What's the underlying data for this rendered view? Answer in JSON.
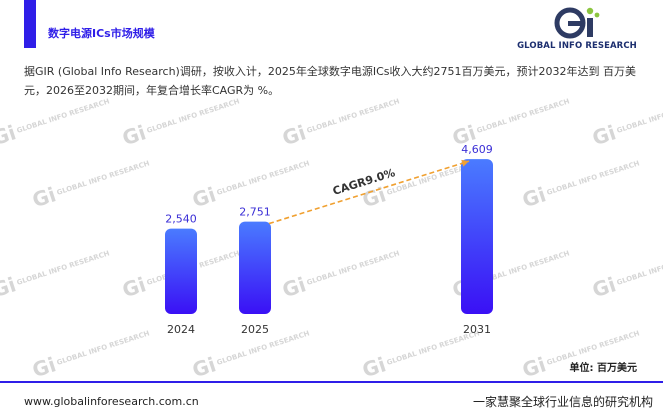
{
  "header": {
    "title": "数字电源ICs市场规模",
    "logo_text": "GLOBAL INFO RESEARCH"
  },
  "description": "据GIR (Global Info Research)调研，按收入计，2025年全球数字电源ICs收入大约2751百万美元，预计2032年达到 百万美元，2026至2032期间，年复合增长率CAGR为 %。",
  "watermark": {
    "mark": "Gi",
    "text": "GLOBAL INFO RESEARCH"
  },
  "chart_data": {
    "type": "bar",
    "categories": [
      "2024",
      "2025",
      "2031"
    ],
    "values": [
      2540,
      2751,
      4609
    ],
    "value_labels": [
      "2,540",
      "2,751",
      "4,609"
    ],
    "annotation": "CAGR9.0%",
    "unit_label": "单位: 百万美元",
    "colors": {
      "bar_top": "#4a7bff",
      "bar_bottom": "#3a10f5",
      "trend": "#f0a030",
      "label": "#3b2fd6"
    }
  },
  "footer": {
    "url": "www.globalinforesearch.com.cn",
    "slogan": "一家慧聚全球行业信息的研究机构"
  }
}
